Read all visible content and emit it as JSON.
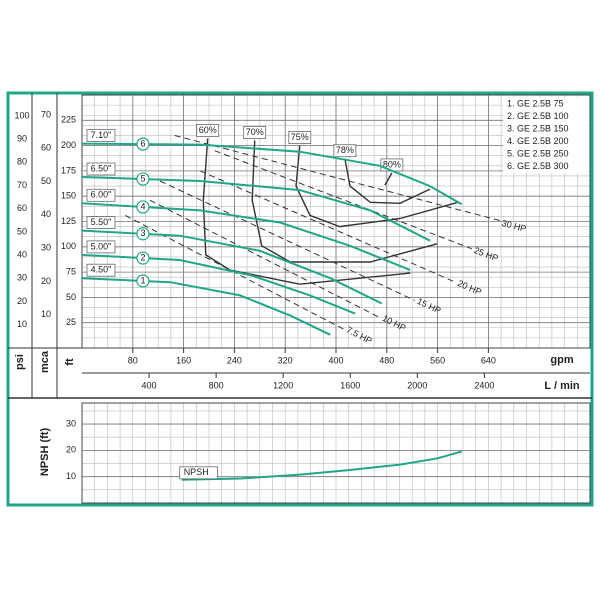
{
  "chart_data": [
    {
      "type": "line",
      "xlabel": "gpm",
      "ylabel": "ft",
      "xlim": [
        0,
        800
      ],
      "xticks": [
        80,
        160,
        240,
        320,
        400,
        480,
        560,
        640
      ],
      "ylim": [
        0,
        250
      ],
      "yticks": [
        25,
        50,
        75,
        100,
        125,
        150,
        175,
        200,
        225
      ],
      "y2label": "psi",
      "y2lim": [
        0,
        109
      ],
      "y2ticks": [
        10,
        20,
        30,
        40,
        50,
        60,
        70,
        80,
        90,
        100
      ],
      "y3label": "mca",
      "y3lim": [
        0,
        76
      ],
      "y3ticks": [
        10,
        20,
        30,
        40,
        50,
        60,
        70
      ],
      "x2label": "L / min",
      "x2lim": [
        0,
        3030
      ],
      "x2ticks": [
        400,
        800,
        1200,
        1600,
        2000,
        2400
      ],
      "grid": {
        "x_step": 20,
        "y_step": 10
      },
      "series": [
        {
          "name": "1. GE 2.5B 75",
          "id": 1,
          "diameter": "4.50\"",
          "color": "#1fa888",
          "x": [
            0,
            139,
            249,
            328,
            391
          ],
          "values": [
            69,
            65,
            52,
            32,
            13
          ]
        },
        {
          "name": "2. GE 2.5B 100",
          "id": 2,
          "diameter": "5.00\"",
          "color": "#1fa888",
          "x": [
            0,
            154,
            265,
            359,
            430
          ],
          "values": [
            92,
            87,
            72,
            52,
            34
          ]
        },
        {
          "name": "3. GE 2.5B 150",
          "id": 3,
          "diameter": "5.50\"",
          "color": "#1fa888",
          "x": [
            0,
            154,
            280,
            391,
            472
          ],
          "values": [
            116,
            111,
            96,
            69,
            44
          ]
        },
        {
          "name": "4. GE 2.5B 200",
          "id": 4,
          "diameter": "6.00\"",
          "color": "#1fa888",
          "x": [
            0,
            186,
            312,
            422,
            517
          ],
          "values": [
            143,
            136,
            124,
            101,
            77
          ]
        },
        {
          "name": "5. GE 2.5B 250",
          "id": 5,
          "diameter": "6.50\"",
          "color": "#1fa888",
          "x": [
            0,
            186,
            343,
            454,
            548
          ],
          "values": [
            169,
            165,
            156,
            136,
            106
          ]
        },
        {
          "name": "6. GE 2.5B 300",
          "id": 6,
          "diameter": "7.10\"",
          "color": "#1fa888",
          "x": [
            0,
            186,
            343,
            469,
            548,
            598
          ],
          "values": [
            202,
            201,
            194,
            180,
            160,
            142
          ]
        }
      ],
      "efficiency": [
        {
          "name": "60%",
          "color": "#333333",
          "x": [
            198,
            191,
            195,
            233,
            343,
            517
          ],
          "values": [
            207,
            146,
            92,
            77,
            63,
            74
          ]
        },
        {
          "name": "70%",
          "color": "#333333",
          "x": [
            272,
            268,
            283,
            328,
            454,
            559
          ],
          "values": [
            205,
            146,
            101,
            85,
            85,
            103
          ]
        },
        {
          "name": "75%",
          "color": "#333333",
          "x": [
            343,
            337,
            359,
            406,
            501,
            592
          ],
          "values": [
            200,
            160,
            131,
            120,
            128,
            144
          ]
        },
        {
          "name": "78%",
          "color": "#333333",
          "x": [
            414,
            422,
            454,
            501,
            548
          ],
          "values": [
            187,
            160,
            144,
            143,
            157
          ]
        },
        {
          "name": "80%",
          "color": "#333333",
          "x": [
            488,
            477
          ],
          "values": [
            173,
            161
          ]
        }
      ],
      "power": [
        {
          "name": "7.5 HP",
          "color": "#333333",
          "x": [
            68,
            414
          ],
          "values": [
            131,
            18
          ]
        },
        {
          "name": "10 HP",
          "color": "#333333",
          "x": [
            107,
            469
          ],
          "values": [
            146,
            30
          ]
        },
        {
          "name": "15 HP",
          "color": "#333333",
          "x": [
            123,
            524
          ],
          "values": [
            165,
            47
          ]
        },
        {
          "name": "20 HP",
          "color": "#333333",
          "x": [
            186,
            588
          ],
          "values": [
            175,
            65
          ]
        },
        {
          "name": "25 HP",
          "color": "#333333",
          "x": [
            209,
            614
          ],
          "values": [
            195,
            98
          ]
        },
        {
          "name": "30 HP",
          "color": "#333333",
          "x": [
            146,
            658
          ],
          "values": [
            210,
            126
          ]
        }
      ]
    },
    {
      "type": "line",
      "ylabel": "NPSH (ft)",
      "xlim": [
        0,
        800
      ],
      "ylim": [
        0,
        38
      ],
      "yticks": [
        10,
        20,
        30
      ],
      "grid": {
        "x_step": 20,
        "y_step": 5
      },
      "series": [
        {
          "name": "NPSH",
          "color": "#1fa888",
          "x": [
            157,
            250,
            343,
            420,
            501,
            560,
            598
          ],
          "values": [
            8.8,
            9.3,
            10.8,
            12.5,
            14.6,
            17,
            19.6
          ]
        }
      ]
    }
  ]
}
